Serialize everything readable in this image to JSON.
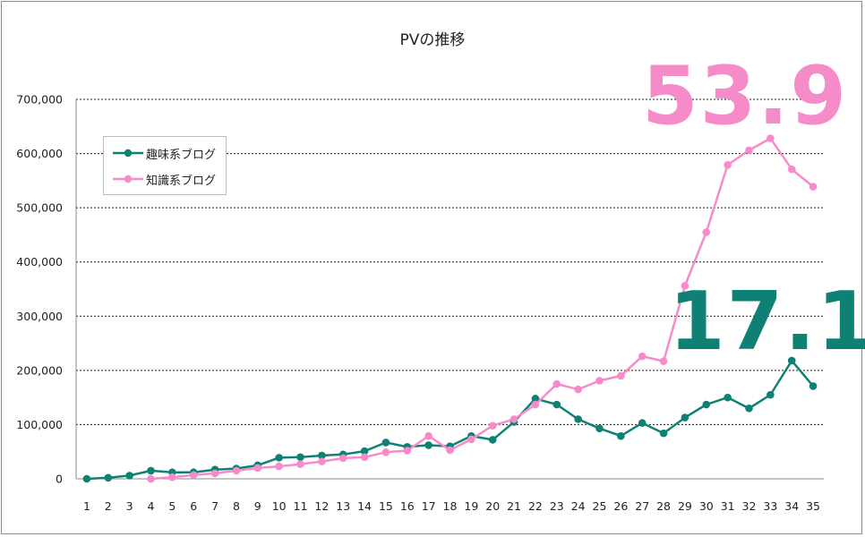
{
  "chart_data": {
    "type": "line",
    "title": "PVの推移",
    "xlabel": "",
    "ylabel": "",
    "x": [
      1,
      2,
      3,
      4,
      5,
      6,
      7,
      8,
      9,
      10,
      11,
      12,
      13,
      14,
      15,
      16,
      17,
      18,
      19,
      20,
      21,
      22,
      23,
      24,
      25,
      26,
      27,
      28,
      29,
      30,
      31,
      32,
      33,
      34,
      35
    ],
    "ylim": [
      0,
      700000
    ],
    "yticks": [
      "0",
      "100,000",
      "200,000",
      "300,000",
      "400,000",
      "500,000",
      "600,000",
      "700,000"
    ],
    "grid": true,
    "legend_position": "left",
    "series": [
      {
        "name": "趣味系ブログ",
        "color": "#0f8074",
        "values": [
          0,
          2000,
          6000,
          15000,
          12000,
          12000,
          17000,
          19000,
          25000,
          39000,
          40000,
          43000,
          45000,
          51000,
          67000,
          59000,
          62000,
          60000,
          79000,
          72000,
          105000,
          148000,
          137000,
          110000,
          93000,
          79000,
          103000,
          84000,
          113000,
          137000,
          150000,
          130000,
          155000,
          218000,
          171000
        ]
      },
      {
        "name": "知識系ブログ",
        "color": "#f58cc9",
        "values": [
          null,
          null,
          null,
          0,
          3000,
          7000,
          10000,
          15000,
          20000,
          23000,
          27000,
          32000,
          38000,
          40000,
          49000,
          52000,
          79000,
          53000,
          73000,
          98000,
          110000,
          137000,
          175000,
          165000,
          181000,
          190000,
          226000,
          217000,
          356000,
          455000,
          579000,
          606000,
          628000,
          571000,
          539000
        ]
      }
    ],
    "annotations": [
      {
        "text": "53.9",
        "color": "#f58cc9"
      },
      {
        "text": "17.1",
        "color": "#0f8074"
      }
    ]
  }
}
